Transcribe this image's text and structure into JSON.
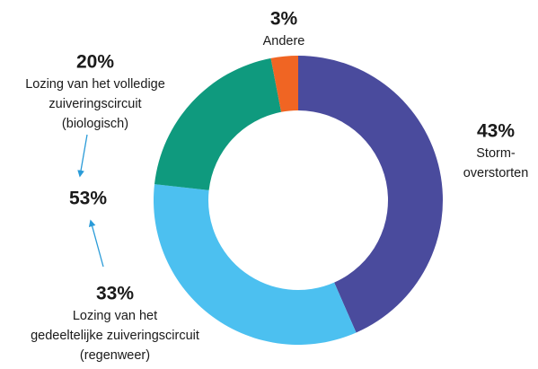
{
  "chart_data": {
    "type": "donut",
    "categories": [
      [
        "Storm-",
        "overstorten"
      ],
      [
        "Lozing van het",
        "gedeeltelijke zuiveringscircuit",
        "(regenweer)"
      ],
      [
        "Lozing van het volledige",
        "zuiveringscircuit",
        "(biologisch)"
      ],
      [
        "Andere"
      ]
    ],
    "values": [
      43,
      33,
      20,
      3
    ],
    "value_labels": [
      "43%",
      "33%",
      "20%",
      "3%"
    ],
    "colors": [
      "#4a4b9d",
      "#4cc0f0",
      "#0f9a7e",
      "#f06523"
    ],
    "annotation": "53%"
  }
}
